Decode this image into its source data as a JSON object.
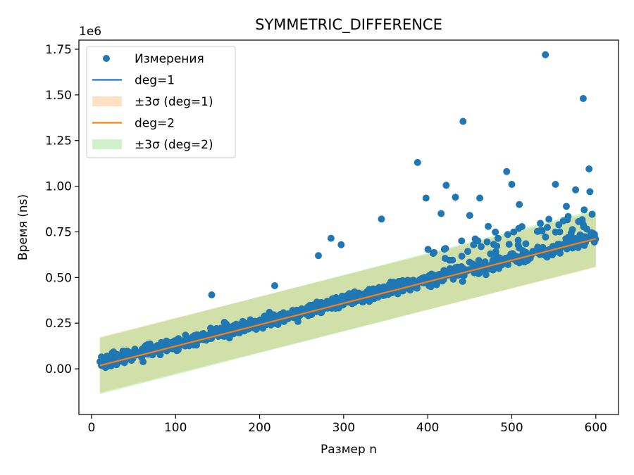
{
  "chart_data": {
    "type": "scatter",
    "title": "SYMMETRIC_DIFFERENCE",
    "xlabel": "Размер n",
    "ylabel": "Время (ns)",
    "y_offset_label": "1e6",
    "y_multiplier": 1000000,
    "xlim": [
      -15,
      627
    ],
    "ylim": [
      -0.25,
      1.8
    ],
    "xticks": [
      0,
      100,
      200,
      300,
      400,
      500,
      600
    ],
    "yticks": [
      0.0,
      0.25,
      0.5,
      0.75,
      1.0,
      1.25,
      1.5,
      1.75
    ],
    "grid": false,
    "legend_position": "top-left",
    "colors": {
      "points": "#1f77b4",
      "deg1_line": "#1f77b4",
      "deg1_band": "#ffbb78",
      "deg2_line": "#ff7f0e",
      "deg2_band": "#98df8a"
    },
    "legend": [
      {
        "label": "Измерения",
        "kind": "scatter",
        "color": "#1f77b4"
      },
      {
        "label": "deg=1",
        "kind": "line",
        "color": "#1f77b4"
      },
      {
        "label": "±3σ (deg=1)",
        "kind": "band",
        "color": "#ffbb78"
      },
      {
        "label": "deg=2",
        "kind": "line",
        "color": "#ff7f0e"
      },
      {
        "label": "±3σ (deg=2)",
        "kind": "band",
        "color": "#98df8a"
      }
    ],
    "series": [
      {
        "name": "Измерения",
        "kind": "scatter",
        "n_range": [
          10,
          600
        ],
        "trend": {
          "intercept": 0.018,
          "slope": 0.00117
        },
        "outliers": [
          [
            143,
            0.405
          ],
          [
            218,
            0.455
          ],
          [
            270,
            0.62
          ],
          [
            285,
            0.715
          ],
          [
            297,
            0.68
          ],
          [
            345,
            0.82
          ],
          [
            388,
            1.13
          ],
          [
            398,
            0.935
          ],
          [
            422,
            1.005
          ],
          [
            433,
            0.94
          ],
          [
            442,
            1.355
          ],
          [
            462,
            0.935
          ],
          [
            494,
            1.08
          ],
          [
            500,
            1.01
          ],
          [
            540,
            1.72
          ],
          [
            552,
            1.01
          ],
          [
            565,
            0.89
          ],
          [
            576,
            0.98
          ],
          [
            585,
            1.48
          ],
          [
            592,
            1.095
          ],
          [
            593,
            0.97
          ],
          [
            472,
            0.78
          ],
          [
            416,
            0.85
          ],
          [
            509,
            0.9
          ],
          [
            450,
            0.84
          ]
        ]
      },
      {
        "name": "deg=1",
        "kind": "line",
        "x": [
          10,
          600
        ],
        "y": [
          0.022,
          0.708
        ]
      },
      {
        "name": "±3σ (deg=1)",
        "kind": "band",
        "x": [
          10,
          600
        ],
        "lower": [
          -0.13,
          0.556
        ],
        "upper": [
          0.174,
          0.86
        ]
      },
      {
        "name": "deg=2",
        "kind": "line",
        "x": [
          10,
          600
        ],
        "y": [
          0.018,
          0.712
        ]
      },
      {
        "name": "±3σ (deg=2)",
        "kind": "band",
        "x": [
          10,
          600
        ],
        "lower": [
          -0.138,
          0.56
        ],
        "upper": [
          0.168,
          0.872
        ]
      }
    ]
  }
}
